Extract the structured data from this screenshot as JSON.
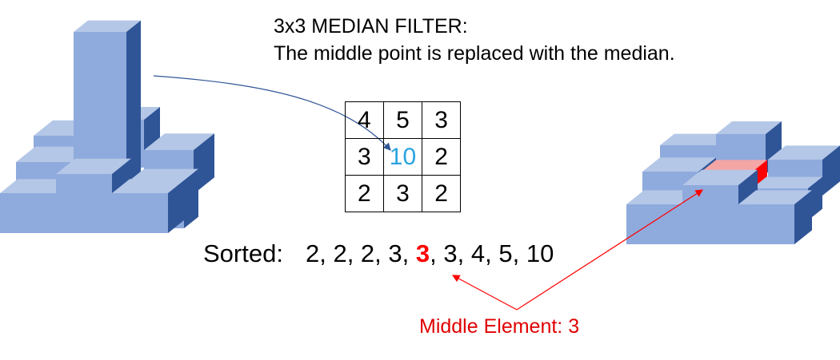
{
  "title": {
    "line1": "3x3 MEDIAN FILTER:",
    "line2": "The middle point is replaced with the median."
  },
  "grid": [
    [
      "4",
      "5",
      "3"
    ],
    [
      "3",
      "10",
      "2"
    ],
    [
      "2",
      "3",
      "2"
    ]
  ],
  "sorted": {
    "label": "Sorted:",
    "values": [
      "2",
      "2",
      "2",
      "3",
      "3",
      "3",
      "4",
      "5",
      "10"
    ],
    "median_index": 4
  },
  "middle_label": "Middle Element: 3",
  "colors": {
    "block_top": "#b4c7e7",
    "block_front": "#8faadc",
    "block_side": "#2f5597",
    "highlight_top": "#f4a5a5",
    "highlight_side": "#ff0000",
    "center_value": "#29a3e0",
    "arrow_blue": "#2f5597",
    "arrow_red": "#ff0000"
  }
}
